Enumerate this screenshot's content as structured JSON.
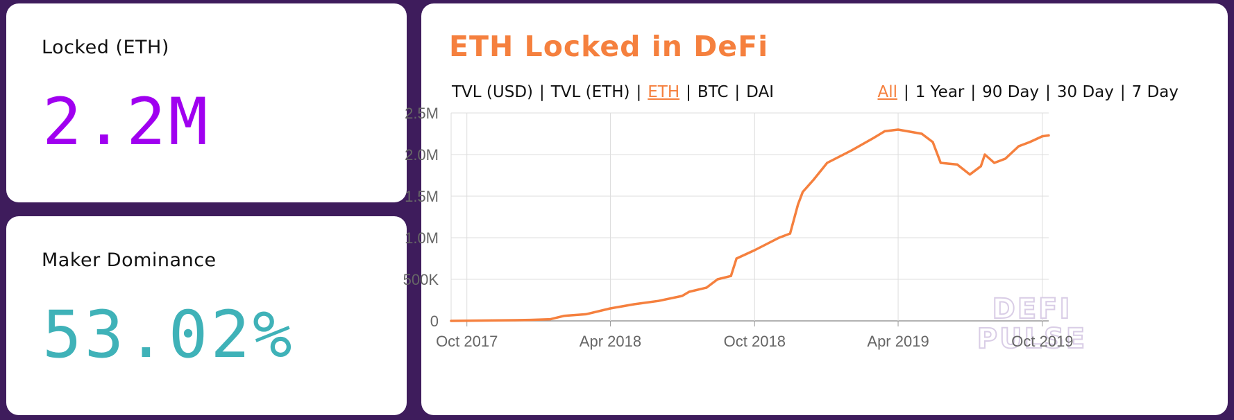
{
  "locked_card": {
    "label": "Locked (ETH)",
    "value": "2.2M"
  },
  "maker_card": {
    "label": "Maker Dominance",
    "value": "53.02%"
  },
  "chart_panel": {
    "title": "ETH Locked in DeFi",
    "metric_options": [
      "TVL (USD)",
      "TVL (ETH)",
      "ETH",
      "BTC",
      "DAI"
    ],
    "active_metric": "ETH",
    "range_options": [
      "All",
      "1 Year",
      "90 Day",
      "30 Day",
      "7 Day"
    ],
    "active_range": "All",
    "watermark": [
      "DEFI",
      "PULSE"
    ]
  },
  "colors": {
    "accent": "#f5803e",
    "locked_value": "#a000f0",
    "maker_value": "#3fb2b8",
    "background": "#3e1c5c"
  },
  "chart_data": {
    "type": "line",
    "title": "ETH Locked in DeFi",
    "xlabel": "",
    "ylabel": "",
    "ylim": [
      0,
      2500000
    ],
    "y_ticks": [
      0,
      500000,
      1000000,
      1500000,
      2000000,
      2500000
    ],
    "y_tick_labels": [
      "0",
      "500K",
      "1.0M",
      "1.5M",
      "2.0M",
      "2.5M"
    ],
    "x_range": [
      "2017-09-11",
      "2019-10-09"
    ],
    "x_ticks": [
      "2017-10-01",
      "2018-04-01",
      "2018-10-01",
      "2019-04-01",
      "2019-10-01"
    ],
    "x_tick_labels": [
      "Oct 2017",
      "Apr 2018",
      "Oct 2018",
      "Apr 2019",
      "Oct 2019"
    ],
    "grid": true,
    "series": [
      {
        "color": "#f5803e",
        "points": [
          [
            "2017-09-11",
            0
          ],
          [
            "2017-10-01",
            2000
          ],
          [
            "2017-11-01",
            5000
          ],
          [
            "2017-12-01",
            8000
          ],
          [
            "2017-12-20",
            12000
          ],
          [
            "2018-01-15",
            20000
          ],
          [
            "2018-02-01",
            60000
          ],
          [
            "2018-03-01",
            80000
          ],
          [
            "2018-04-01",
            150000
          ],
          [
            "2018-05-01",
            200000
          ],
          [
            "2018-06-01",
            240000
          ],
          [
            "2018-07-01",
            300000
          ],
          [
            "2018-07-10",
            350000
          ],
          [
            "2018-08-01",
            400000
          ],
          [
            "2018-08-15",
            500000
          ],
          [
            "2018-09-01",
            540000
          ],
          [
            "2018-09-08",
            750000
          ],
          [
            "2018-10-01",
            850000
          ],
          [
            "2018-11-01",
            1000000
          ],
          [
            "2018-11-15",
            1050000
          ],
          [
            "2018-11-25",
            1400000
          ],
          [
            "2018-12-01",
            1550000
          ],
          [
            "2018-12-15",
            1700000
          ],
          [
            "2019-01-01",
            1900000
          ],
          [
            "2019-02-01",
            2050000
          ],
          [
            "2019-03-01",
            2200000
          ],
          [
            "2019-03-15",
            2280000
          ],
          [
            "2019-04-01",
            2300000
          ],
          [
            "2019-05-01",
            2250000
          ],
          [
            "2019-05-15",
            2150000
          ],
          [
            "2019-05-25",
            1900000
          ],
          [
            "2019-06-15",
            1880000
          ],
          [
            "2019-07-01",
            1760000
          ],
          [
            "2019-07-15",
            1860000
          ],
          [
            "2019-07-20",
            2000000
          ],
          [
            "2019-08-01",
            1900000
          ],
          [
            "2019-08-15",
            1950000
          ],
          [
            "2019-09-01",
            2100000
          ],
          [
            "2019-09-15",
            2150000
          ],
          [
            "2019-10-01",
            2220000
          ],
          [
            "2019-10-09",
            2230000
          ]
        ]
      }
    ]
  }
}
